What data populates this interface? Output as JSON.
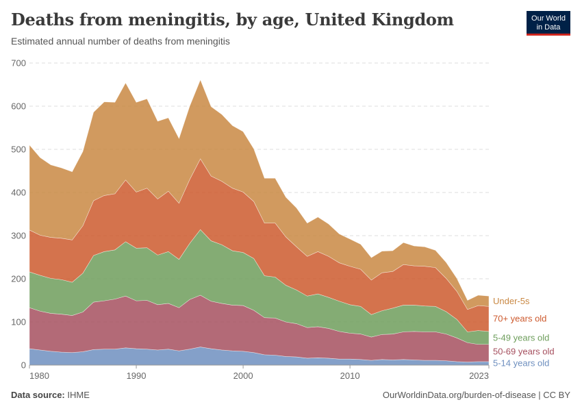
{
  "header": {
    "title": "Deaths from meningitis, by age, United Kingdom",
    "subtitle": "Estimated annual number of deaths from meningitis"
  },
  "logo": {
    "line1": "Our World",
    "line2": "in Data"
  },
  "footer": {
    "source_label": "Data source:",
    "source_value": "IHME",
    "url_text": "OurWorldinData.org/burden-of-disease | CC BY"
  },
  "colors": {
    "5-14 years old": "#6e8fbf",
    "50-69 years old": "#a6505f",
    "5-49 years old": "#6e9e5c",
    "70+ years old": "#cd5a2e",
    "Under-5s": "#c98843"
  },
  "chart_data": {
    "type": "area",
    "stacked": true,
    "x": [
      1980,
      1981,
      1982,
      1983,
      1984,
      1985,
      1986,
      1987,
      1988,
      1989,
      1990,
      1991,
      1992,
      1993,
      1994,
      1995,
      1996,
      1997,
      1998,
      1999,
      2000,
      2001,
      2002,
      2003,
      2004,
      2005,
      2006,
      2007,
      2008,
      2009,
      2010,
      2011,
      2012,
      2013,
      2014,
      2015,
      2016,
      2017,
      2018,
      2019,
      2020,
      2021,
      2022,
      2023
    ],
    "x_ticks": [
      1980,
      1990,
      2000,
      2010,
      2023
    ],
    "y_ticks": [
      0,
      100,
      200,
      300,
      400,
      500,
      600,
      700
    ],
    "ylim": [
      0,
      700
    ],
    "grid": "horizontal dashed",
    "legend": "right, inline labels",
    "series": [
      {
        "name": "5-14 years old",
        "values": [
          38,
          35,
          32,
          30,
          29,
          31,
          36,
          37,
          37,
          40,
          38,
          37,
          35,
          37,
          33,
          37,
          42,
          38,
          35,
          33,
          32,
          29,
          24,
          23,
          20,
          19,
          16,
          17,
          16,
          14,
          14,
          13,
          11,
          13,
          12,
          13,
          12,
          11,
          11,
          10,
          8,
          7,
          8,
          8
        ]
      },
      {
        "name": "50-69 years old",
        "values": [
          95,
          90,
          88,
          88,
          86,
          92,
          110,
          112,
          116,
          120,
          111,
          113,
          105,
          106,
          100,
          115,
          120,
          110,
          108,
          106,
          106,
          98,
          86,
          86,
          80,
          77,
          71,
          72,
          69,
          64,
          60,
          59,
          54,
          58,
          60,
          64,
          66,
          66,
          66,
          62,
          55,
          45,
          40,
          40
        ]
      },
      {
        "name": "5-49 years old",
        "values": [
          83,
          83,
          81,
          80,
          77,
          90,
          108,
          114,
          114,
          126,
          122,
          122,
          115,
          120,
          112,
          130,
          152,
          140,
          136,
          126,
          123,
          120,
          97,
          95,
          85,
          78,
          73,
          76,
          72,
          70,
          66,
          64,
          52,
          55,
          60,
          62,
          61,
          60,
          59,
          52,
          43,
          25,
          32,
          30
        ]
      },
      {
        "name": "70+ years old",
        "values": [
          97,
          93,
          95,
          96,
          98,
          110,
          127,
          130,
          130,
          143,
          130,
          138,
          130,
          140,
          130,
          148,
          164,
          150,
          147,
          145,
          140,
          132,
          122,
          125,
          112,
          100,
          92,
          98,
          95,
          89,
          89,
          86,
          80,
          88,
          85,
          94,
          91,
          92,
          90,
          77,
          65,
          52,
          58,
          58
        ]
      },
      {
        "name": "Under-5s",
        "values": [
          197,
          180,
          168,
          163,
          158,
          172,
          205,
          217,
          212,
          225,
          208,
          207,
          180,
          170,
          150,
          170,
          183,
          161,
          155,
          145,
          140,
          122,
          104,
          104,
          92,
          90,
          77,
          80,
          75,
          67,
          63,
          58,
          52,
          50,
          48,
          51,
          46,
          45,
          40,
          37,
          30,
          21,
          24,
          24
        ]
      }
    ]
  }
}
